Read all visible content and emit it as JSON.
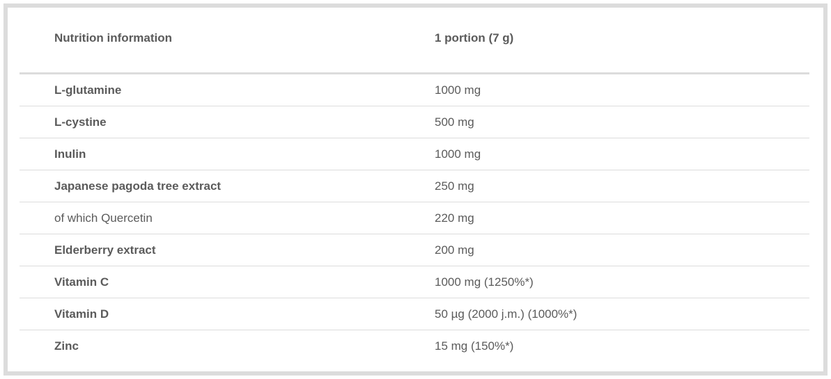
{
  "header": {
    "name": "Nutrition information",
    "value": "1 portion (7 g)"
  },
  "rows": [
    {
      "name": "L-glutamine",
      "value": "1000 mg",
      "bold": true
    },
    {
      "name": "L-cystine",
      "value": "500 mg",
      "bold": true
    },
    {
      "name": "Inulin",
      "value": "1000 mg",
      "bold": true
    },
    {
      "name": "Japanese pagoda tree extract",
      "value": "250 mg",
      "bold": true
    },
    {
      "name": "of which Quercetin",
      "value": "220 mg",
      "bold": false
    },
    {
      "name": "Elderberry extract",
      "value": "200 mg",
      "bold": true
    },
    {
      "name": "Vitamin C",
      "value": "1000 mg (1250%*)",
      "bold": true
    },
    {
      "name": "Vitamin D",
      "value": "50 µg (2000 j.m.) (1000%*)",
      "bold": true
    },
    {
      "name": "Zinc",
      "value": "15 mg (150%*)",
      "bold": true
    }
  ]
}
